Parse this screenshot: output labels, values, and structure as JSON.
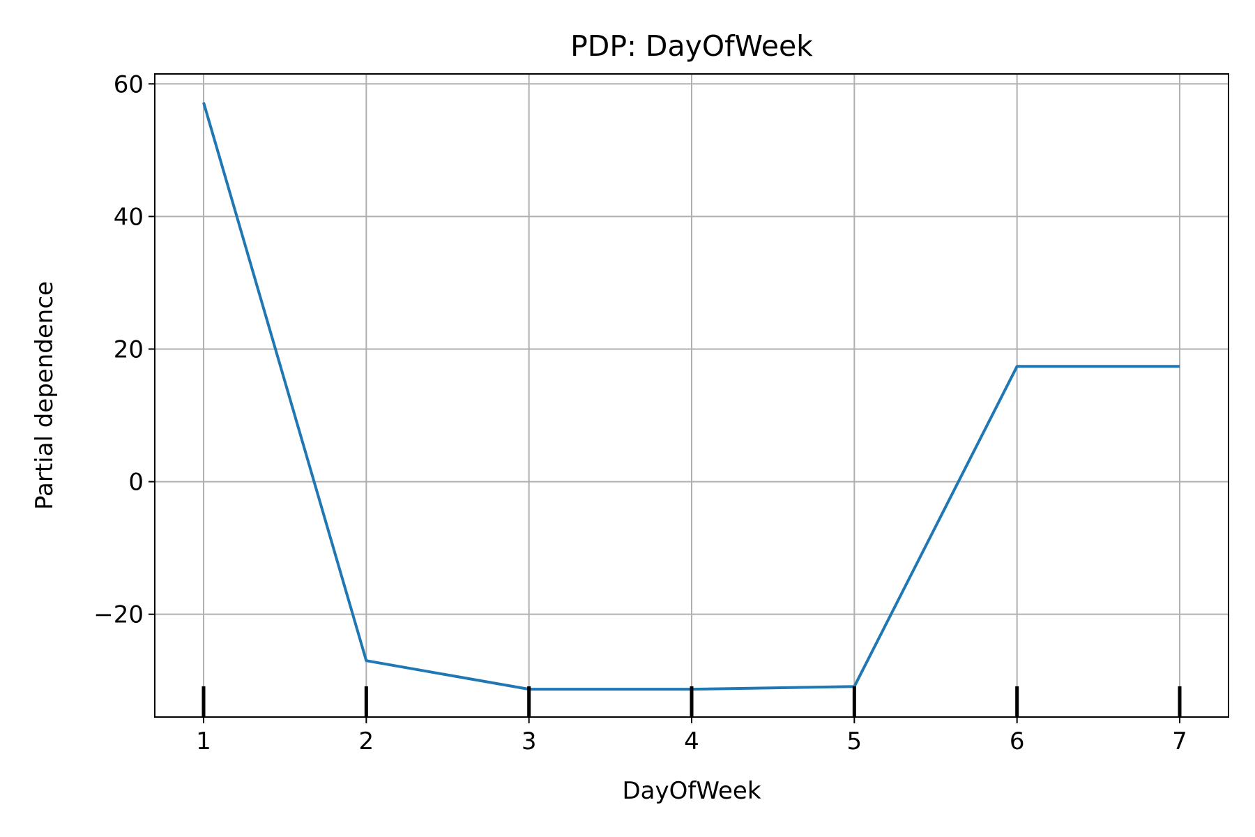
{
  "chart_data": {
    "type": "line",
    "title": "PDP: DayOfWeek",
    "xlabel": "DayOfWeek",
    "ylabel": "Partial dependence",
    "x": [
      1,
      2,
      3,
      4,
      5,
      6,
      7
    ],
    "series": [
      {
        "values": [
          57.2,
          -27.0,
          -31.3,
          -31.3,
          -30.9,
          17.4,
          17.4
        ]
      }
    ],
    "rug": [
      1,
      2,
      3,
      4,
      5,
      6,
      7
    ],
    "xticks": [
      1,
      2,
      3,
      4,
      5,
      6,
      7
    ],
    "yticks": [
      -20,
      0,
      20,
      40,
      60
    ],
    "ytick_labels": [
      "−20",
      "0",
      "20",
      "40",
      "60"
    ],
    "xlim": [
      0.7,
      7.3
    ],
    "ylim": [
      -35.5,
      61.5
    ],
    "grid": true,
    "colors": {
      "line": "#1f77b4",
      "grid": "#b0b0b0",
      "rug": "#000000"
    }
  }
}
